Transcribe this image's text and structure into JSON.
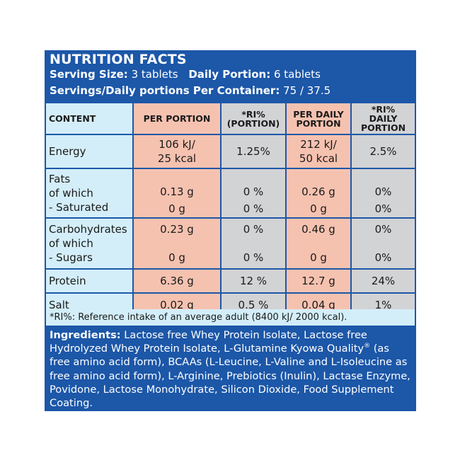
{
  "header": {
    "title": "NUTRITION FACTS",
    "serving_size_label": "Serving Size:",
    "serving_size_value": "3 tablets",
    "daily_portion_label": "Daily Portion:",
    "daily_portion_value": "6 tablets",
    "servings_label": "Servings/Daily portions Per Container:",
    "servings_value": "75 / 37.5"
  },
  "table": {
    "headers": {
      "content": "CONTENT",
      "per_portion": "PER PORTION",
      "ri_portion_1": "*RI%",
      "ri_portion_2": "(PORTION)",
      "per_daily_1": "PER DAILY",
      "per_daily_2": "PORTION",
      "ri_daily_1": "*RI%",
      "ri_daily_2": "DAILY",
      "ri_daily_3": "PORTION"
    },
    "energy": {
      "label": "Energy",
      "per_portion_1": "106 kJ/",
      "per_portion_2": "25 kcal",
      "ri_portion": "1.25%",
      "per_daily_1": "212 kJ/",
      "per_daily_2": "50 kcal",
      "ri_daily": "2.5%"
    },
    "fats": {
      "label_1": "Fats",
      "label_2": "of which",
      "label_3": "- Saturated",
      "per_portion": "0.13 g",
      "ri_portion": "0 %",
      "per_daily": "0.26 g",
      "ri_daily": "0%",
      "sat_per_portion": "0 g",
      "sat_ri_portion": "0 %",
      "sat_per_daily": "0 g",
      "sat_ri_daily": "0%"
    },
    "carbs": {
      "label_1": "Carbohydrates",
      "label_2": "of which",
      "label_3": "- Sugars",
      "per_portion": "0.23 g",
      "ri_portion": "0 %",
      "per_daily": "0.46 g",
      "ri_daily": "0%",
      "sug_per_portion": "0 g",
      "sug_ri_portion": "0 %",
      "sug_per_daily": "0 g",
      "sug_ri_daily": "0%"
    },
    "protein": {
      "label": "Protein",
      "per_portion": "6.36 g",
      "ri_portion": "12 %",
      "per_daily": "12.7 g",
      "ri_daily": "24%"
    },
    "salt": {
      "label": "Salt",
      "per_portion": "0.02 g",
      "ri_portion": "0.5 %",
      "per_daily": "0.04 g",
      "ri_daily": "1%"
    }
  },
  "footnote": "*RI%:  Reference intake of an average adult (8400 kJ/ 2000 kcal).",
  "ingredients": {
    "label": "Ingredients:",
    "text_1": " Lactose free Whey Protein Isolate, Lactose free Hydrolyzed Whey Protein Isolate, L-Glutamine Kyowa Quality",
    "reg": "®",
    "text_2": " (as free amino acid form), BCAAs (L-Leucine, L-Valine and L-Isoleucine as free amino acid form), L-Arginine, Prebiotics (Inulin), Lactase Enzyme, Povidone, Lactose Monohydrate, Silicon Dioxide, Food Supplement Coating."
  },
  "colors": {
    "panel_blue": "#1c57a8",
    "light_blue": "#d3eef9",
    "salmon": "#f6c2b0",
    "grey": "#d2d3d5"
  }
}
